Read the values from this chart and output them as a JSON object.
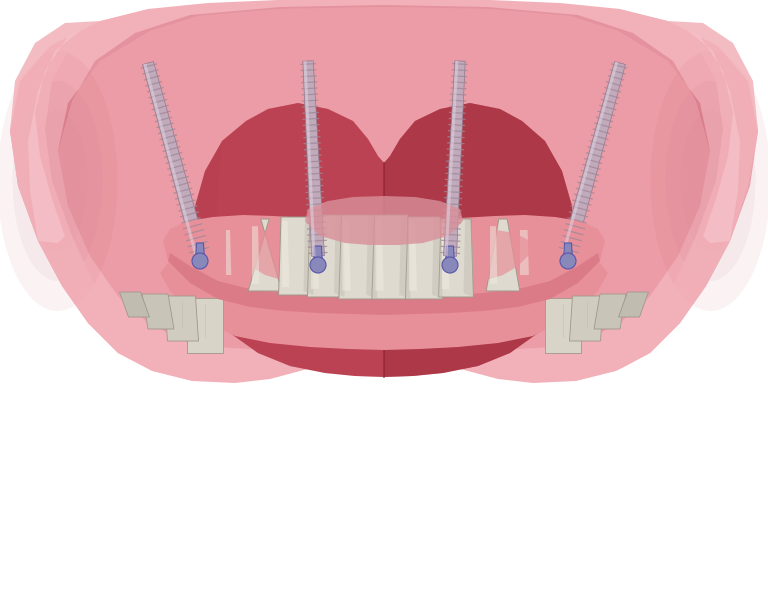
{
  "background_color": "#ffffff",
  "gum_light": "#f2b0b8",
  "gum_mid": "#e8909a",
  "gum_dark": "#d06878",
  "gum_inner": "#c85868",
  "tongue_base": "#b84050",
  "tongue_mid": "#a03040",
  "tongue_dark": "#882030",
  "tongue_highlight": "#cc5060",
  "tooth_base": "#dedad0",
  "tooth_light": "#eeeae0",
  "tooth_dark": "#bab4a8",
  "tooth_edge": "#a09888",
  "implant_shaft": "#c0aabb",
  "implant_dark": "#907888",
  "implant_thread": "#a08898",
  "implant_tip": "#b09aaa",
  "abutment_color": "#8888bb",
  "abutment_dark": "#5555aa",
  "figsize": [
    7.68,
    5.91
  ],
  "dpi": 100
}
